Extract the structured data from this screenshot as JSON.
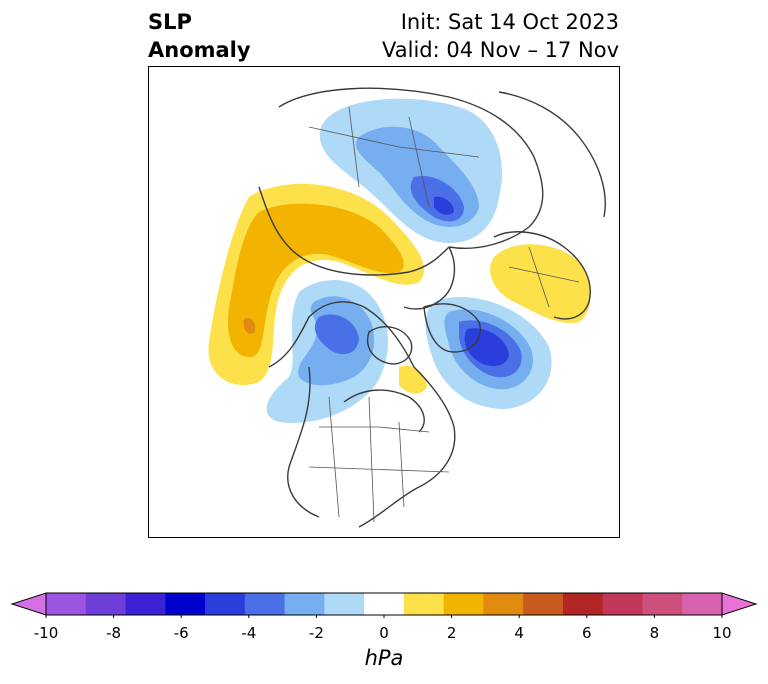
{
  "title": {
    "left_line1": "SLP",
    "left_line2": "Anomaly",
    "right_line1": "Init: Sat 14 Oct 2023",
    "right_line2": "Valid: 04 Nov – 17 Nov"
  },
  "colorbar": {
    "unit": "hPa",
    "ticks": [
      "-10",
      "-8",
      "-6",
      "-4",
      "-2",
      "0",
      "2",
      "4",
      "6",
      "8",
      "10"
    ],
    "colors": [
      "#d46fe6",
      "#9b55e0",
      "#6f3ed8",
      "#3b22d4",
      "#0000cd",
      "#2a3edb",
      "#4a6fe6",
      "#76aef0",
      "#aedaf8",
      "#ffffff",
      "#fde14a",
      "#f2b400",
      "#e08a10",
      "#c95a1e",
      "#b22626",
      "#c0375a",
      "#cc4f7c",
      "#d862ae",
      "#e773d8"
    ],
    "range": [
      -10,
      10
    ],
    "extend": "both"
  },
  "map": {
    "projection": "north-polar-stereographic",
    "anomalies": [
      {
        "name": "north-america-west-coast-low",
        "sign": "negative",
        "peak_hpa": -4
      },
      {
        "name": "labrador-sea-low",
        "sign": "negative",
        "peak_hpa": -5
      },
      {
        "name": "siberia-low",
        "sign": "negative",
        "peak_hpa": -5
      },
      {
        "name": "europe-high",
        "sign": "positive",
        "peak_hpa": 3
      },
      {
        "name": "north-pacific-high",
        "sign": "positive",
        "peak_hpa": 4
      },
      {
        "name": "hudson-bay-high",
        "sign": "positive",
        "peak_hpa": 1
      }
    ]
  }
}
